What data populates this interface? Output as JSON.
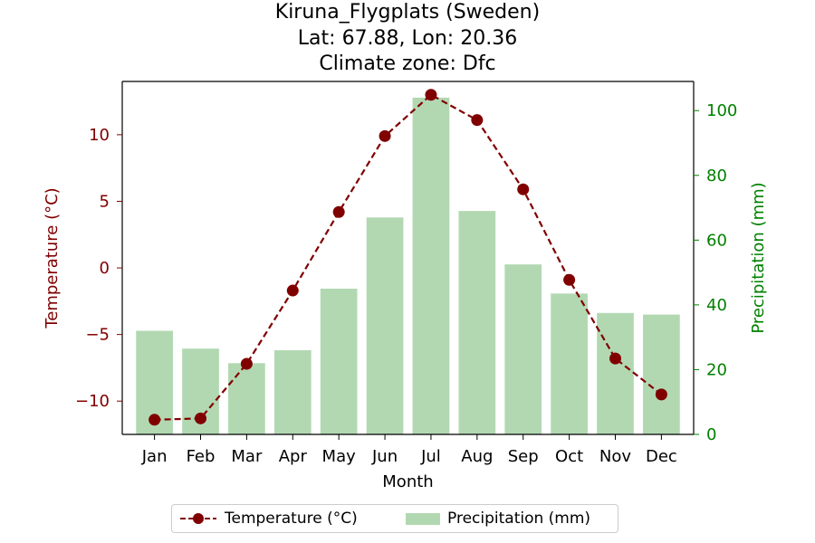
{
  "title": {
    "line1": "Kiruna_Flygplats (Sweden)",
    "line2": "Lat: 67.88, Lon: 20.36",
    "line3": "Climate zone: Dfc"
  },
  "colors": {
    "temperature": "#800000",
    "precipitation_bar": "#b2d8b2",
    "precipitation_axis": "#008000"
  },
  "chart_data": {
    "type": "bar+line",
    "categories": [
      "Jan",
      "Feb",
      "Mar",
      "Apr",
      "May",
      "Jun",
      "Jul",
      "Aug",
      "Sep",
      "Oct",
      "Nov",
      "Dec"
    ],
    "xlabel": "Month",
    "series": [
      {
        "name": "Temperature (°C)",
        "type": "line",
        "axis": "left",
        "values": [
          -11.4,
          -11.3,
          -7.2,
          -1.7,
          4.2,
          9.9,
          13.0,
          11.1,
          5.9,
          -0.9,
          -6.8,
          -9.5
        ]
      },
      {
        "name": "Precipitation (mm)",
        "type": "bar",
        "axis": "right",
        "values": [
          32,
          26.5,
          22,
          26,
          45,
          67,
          104,
          69,
          52.5,
          43.5,
          37.5,
          37
        ]
      }
    ],
    "y_left": {
      "label": "Temperature (°C)",
      "ylim": [
        -12.5,
        14.0
      ],
      "ticks": [
        -10,
        -5,
        0,
        5,
        10
      ],
      "tick_labels": [
        "−10",
        "−5",
        "0",
        "5",
        "10"
      ]
    },
    "y_right": {
      "label": "Precipitation (mm)",
      "ylim": [
        0,
        109
      ],
      "ticks": [
        0,
        20,
        40,
        60,
        80,
        100
      ],
      "tick_labels": [
        "0",
        "20",
        "40",
        "60",
        "80",
        "100"
      ]
    },
    "grid": false,
    "legend_position": "bottom-center"
  }
}
